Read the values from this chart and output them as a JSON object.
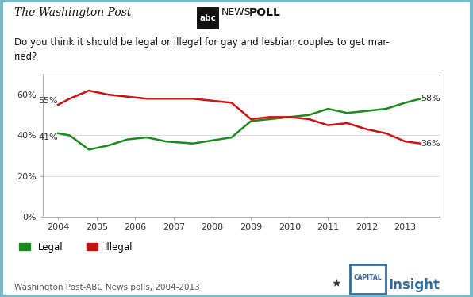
{
  "legal_x": [
    2004.0,
    2004.3,
    2004.8,
    2005.3,
    2005.8,
    2006.3,
    2006.8,
    2007.5,
    2008.5,
    2009.0,
    2009.5,
    2010.0,
    2010.5,
    2011.0,
    2011.5,
    2012.0,
    2012.5,
    2013.0,
    2013.4
  ],
  "legal_y": [
    41,
    40,
    33,
    35,
    38,
    39,
    37,
    36,
    39,
    47,
    48,
    49,
    50,
    53,
    51,
    52,
    53,
    56,
    58
  ],
  "illegal_x": [
    2004.0,
    2004.3,
    2004.8,
    2005.3,
    2005.8,
    2006.3,
    2006.8,
    2007.5,
    2008.5,
    2009.0,
    2009.5,
    2010.0,
    2010.5,
    2011.0,
    2011.5,
    2012.0,
    2012.5,
    2013.0,
    2013.4
  ],
  "illegal_y": [
    55,
    58,
    62,
    60,
    59,
    58,
    58,
    58,
    56,
    48,
    49,
    49,
    48,
    45,
    46,
    43,
    41,
    37,
    36
  ],
  "legal_color": "#1a8a1a",
  "illegal_color": "#cc1111",
  "label_start_legal": "41%",
  "label_end_legal": "58%",
  "label_start_illegal": "55%",
  "label_end_illegal": "36%",
  "source": "Washington Post-ABC News polls, 2004-2013",
  "xlim": [
    2003.6,
    2013.9
  ],
  "ylim": [
    0,
    70
  ],
  "yticks": [
    0,
    20,
    40,
    60
  ],
  "ytick_labels": [
    "0%",
    "20%",
    "40%",
    "60%"
  ],
  "xticks": [
    2004,
    2005,
    2006,
    2007,
    2008,
    2009,
    2010,
    2011,
    2012,
    2013
  ],
  "bg_color": "#ffffff",
  "border_color": "#78b8c8",
  "plot_bg": "#ffffff"
}
